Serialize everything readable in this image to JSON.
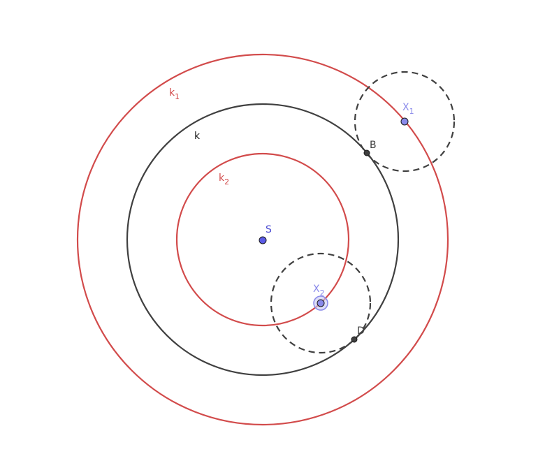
{
  "circles": {
    "k1": {
      "base": "k",
      "sub": "1",
      "color": "#d24b4b"
    },
    "k": {
      "base": "k",
      "sub": "",
      "color": "#404040"
    },
    "k2": {
      "base": "k",
      "sub": "2",
      "color": "#d24b4b"
    },
    "x1_circle": {
      "style": "dashed",
      "color": "#404040"
    },
    "x2_circle": {
      "style": "dashed",
      "color": "#404040"
    }
  },
  "points": {
    "S": {
      "base": "S",
      "sub": "",
      "color": "#4b4bd2"
    },
    "X1": {
      "base": "X",
      "sub": "1",
      "color": "#8a8aea"
    },
    "X2": {
      "base": "X",
      "sub": "2",
      "color": "#8a8aea"
    },
    "B": {
      "base": "B",
      "sub": "",
      "color": "#404040"
    },
    "D": {
      "base": "D",
      "sub": "",
      "color": "#404040"
    }
  },
  "colors": {
    "red": "#d24b4b",
    "dark": "#404040",
    "point_blue": "#5b5be6",
    "label_blue": "#8a8aea",
    "label_blue_dark": "#4b4bd2"
  }
}
